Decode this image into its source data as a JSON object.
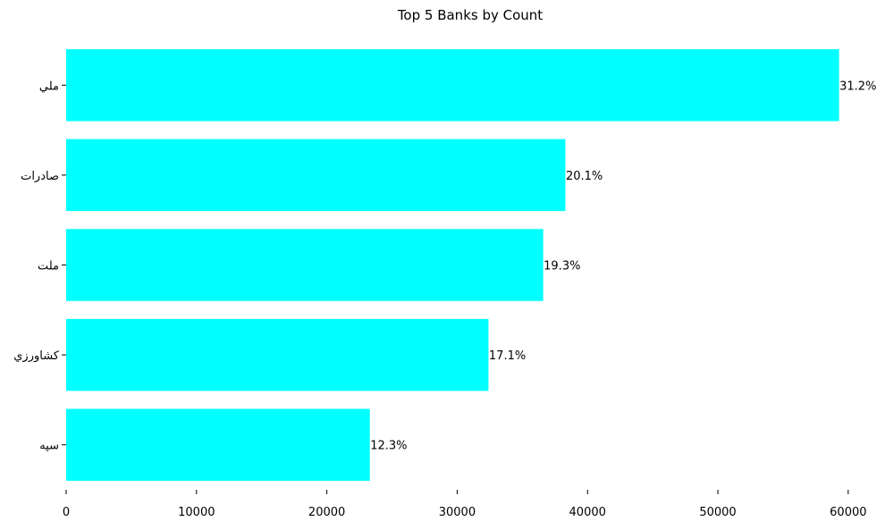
{
  "chart_data": {
    "type": "bar",
    "orientation": "horizontal",
    "title": "Top 5 Banks by Count",
    "xlabel": "",
    "ylabel": "",
    "categories": [
      "ملي",
      "صادرات",
      "ملت",
      "كشاورزي",
      "سپه"
    ],
    "values": [
      59300,
      38300,
      36600,
      32400,
      23300
    ],
    "data_labels": [
      "31.2%",
      "20.1%",
      "19.3%",
      "17.1%",
      "12.3%"
    ],
    "xlim": [
      0,
      62000
    ],
    "xticks": [
      0,
      10000,
      20000,
      30000,
      40000,
      50000,
      60000
    ],
    "xtick_labels": [
      "0",
      "10000",
      "20000",
      "30000",
      "40000",
      "50000",
      "60000"
    ],
    "grid": false,
    "bar_color": "#00ffff"
  }
}
